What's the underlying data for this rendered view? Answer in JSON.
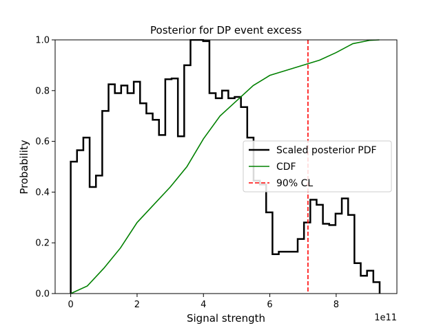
{
  "chart_data": {
    "type": "line",
    "title": "Posterior for DP event excess",
    "xlabel": "Signal strength",
    "ylabel": "Probability",
    "x_scale_label": "1e11",
    "xlim": [
      -0.47,
      9.83
    ],
    "ylim": [
      0,
      1.0
    ],
    "x_ticks": [
      0,
      2,
      4,
      6,
      8
    ],
    "x_tick_labels": [
      "0",
      "2",
      "4",
      "6",
      "8"
    ],
    "y_ticks": [
      0.0,
      0.2,
      0.4,
      0.6,
      0.8,
      1.0
    ],
    "y_tick_labels": [
      "0.0",
      "0.2",
      "0.4",
      "0.6",
      "0.8",
      "1.0"
    ],
    "grid": false,
    "legend_position": "center-right",
    "series": [
      {
        "name": "Scaled posterior PDF",
        "style": "step",
        "color": "#000000",
        "bin_edges": [
          0,
          0.19,
          0.38,
          0.57,
          0.76,
          0.95,
          1.14,
          1.33,
          1.52,
          1.71,
          1.9,
          2.09,
          2.28,
          2.47,
          2.66,
          2.85,
          3.04,
          3.23,
          3.42,
          3.61,
          3.8,
          3.99,
          4.18,
          4.37,
          4.56,
          4.75,
          4.94,
          5.13,
          5.32,
          5.51,
          5.7,
          5.89,
          6.08,
          6.27,
          6.46,
          6.65,
          6.84,
          7.03,
          7.22,
          7.41,
          7.6,
          7.79,
          7.98,
          8.17,
          8.36,
          8.55,
          8.74,
          8.93,
          9.12,
          9.31
        ],
        "values": [
          0.52,
          0.565,
          0.615,
          0.42,
          0.465,
          0.72,
          0.825,
          0.79,
          0.82,
          0.79,
          0.835,
          0.75,
          0.71,
          0.685,
          0.625,
          0.845,
          0.848,
          0.62,
          0.9,
          1.0,
          1.0,
          0.995,
          0.79,
          0.77,
          0.8,
          0.77,
          0.775,
          0.735,
          0.615,
          0.445,
          0.43,
          0.32,
          0.155,
          0.165,
          0.165,
          0.165,
          0.215,
          0.28,
          0.37,
          0.35,
          0.275,
          0.27,
          0.315,
          0.375,
          0.31,
          0.12,
          0.07,
          0.09,
          0.045
        ]
      },
      {
        "name": "CDF",
        "style": "line",
        "color": "#008000",
        "x": [
          0,
          0.5,
          1.0,
          1.5,
          2.0,
          2.5,
          3.0,
          3.5,
          4.0,
          4.5,
          5.0,
          5.5,
          6.0,
          6.5,
          7.0,
          7.5,
          8.0,
          8.5,
          9.0,
          9.3
        ],
        "values": [
          0.0,
          0.03,
          0.1,
          0.18,
          0.28,
          0.35,
          0.42,
          0.5,
          0.61,
          0.7,
          0.76,
          0.82,
          0.86,
          0.88,
          0.9,
          0.92,
          0.95,
          0.985,
          0.998,
          1.0
        ]
      },
      {
        "name": "90% CL",
        "style": "dashed-vertical",
        "color": "#ff0000",
        "x_value": 7.15
      }
    ]
  }
}
